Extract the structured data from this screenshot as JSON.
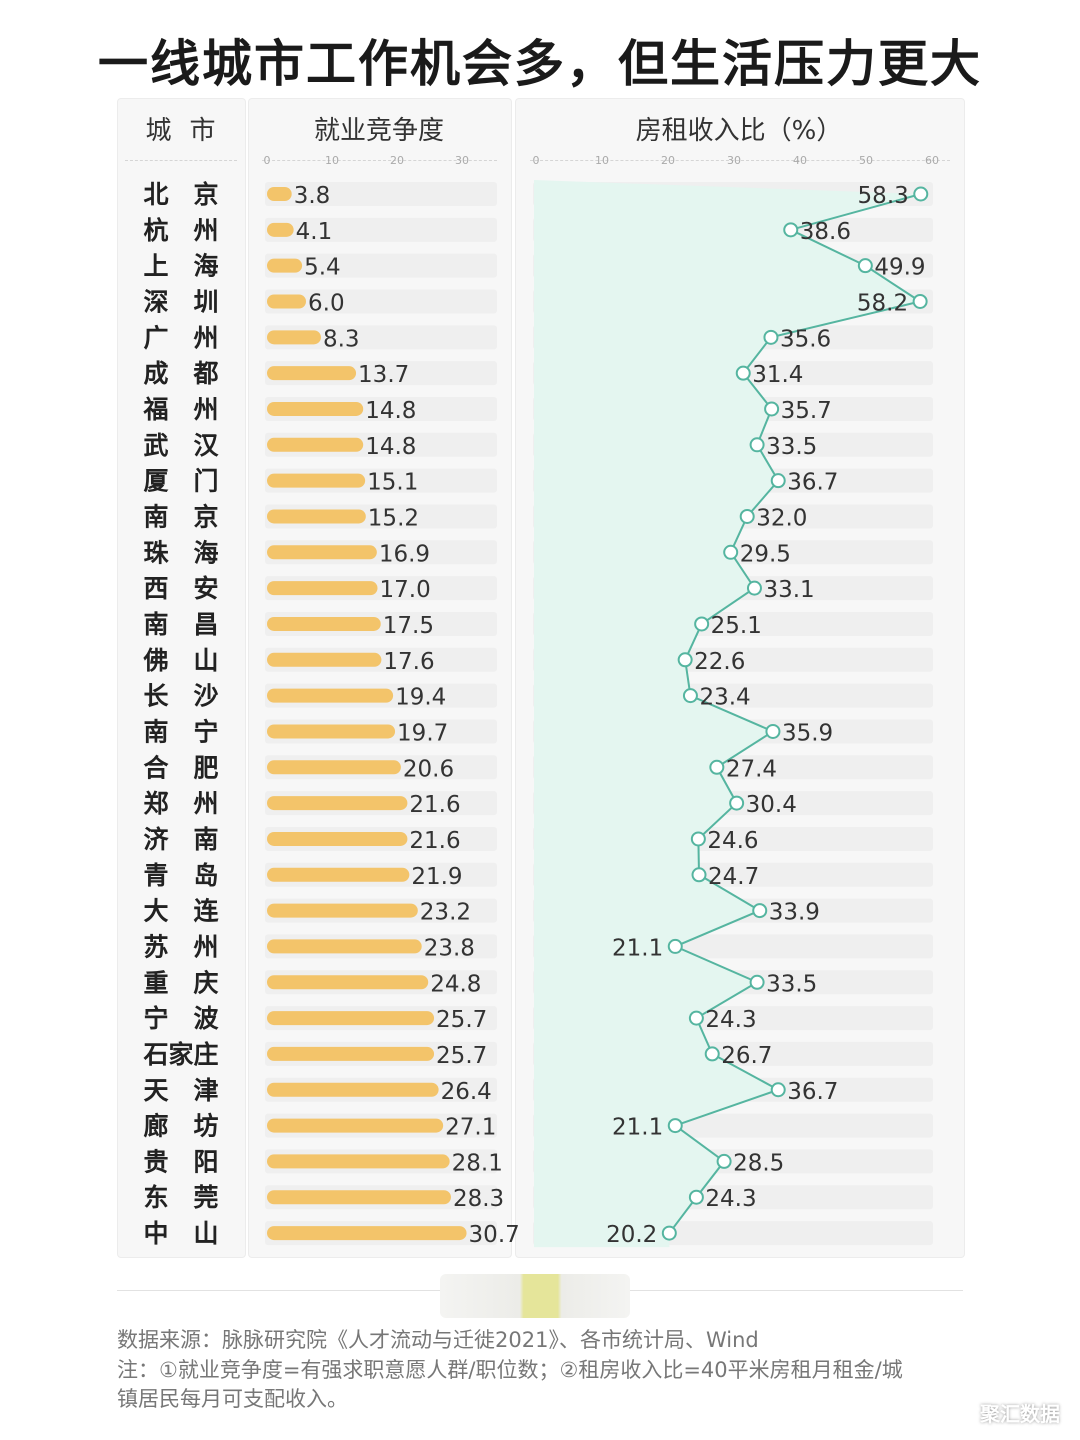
{
  "title": "一线城市工作机会多，但生活压力更大",
  "chart_data": {
    "type": "bar+line",
    "title": "一线城市工作机会多，但生活压力更大",
    "city_header": "城市",
    "categories": [
      "北京",
      "杭州",
      "上海",
      "深圳",
      "广州",
      "成都",
      "福州",
      "武汉",
      "厦门",
      "南京",
      "珠海",
      "西安",
      "南昌",
      "佛山",
      "长沙",
      "南宁",
      "合肥",
      "郑州",
      "济南",
      "青岛",
      "大连",
      "苏州",
      "重庆",
      "宁波",
      "石家庄",
      "天津",
      "廊坊",
      "贵阳",
      "东莞",
      "中山"
    ],
    "series": [
      {
        "name": "就业竞争度",
        "type": "bar",
        "ticks": [
          0,
          10,
          20,
          30
        ],
        "xlim": [
          0,
          34
        ],
        "values": [
          3.8,
          4.1,
          5.4,
          6.0,
          8.3,
          13.7,
          14.8,
          14.8,
          15.1,
          15.2,
          16.9,
          17.0,
          17.5,
          17.6,
          19.4,
          19.7,
          20.6,
          21.6,
          21.6,
          21.9,
          23.2,
          23.8,
          24.8,
          25.7,
          25.7,
          26.4,
          27.1,
          28.1,
          28.3,
          30.7
        ],
        "labels": [
          "3.8",
          "4.1",
          "5.4",
          "6.0",
          "8.3",
          "13.7",
          "14.8",
          "14.8",
          "15.1",
          "15.2",
          "16.9",
          "17.0",
          "17.5",
          "17.6",
          "19.4",
          "19.7",
          "20.6",
          "21.6",
          "21.6",
          "21.9",
          "23.2",
          "23.8",
          "24.8",
          "25.7",
          "25.7",
          "26.4",
          "27.1",
          "28.1",
          "28.3",
          "30.7"
        ]
      },
      {
        "name": "房租收入比（%）",
        "type": "line",
        "ticks": [
          0,
          10,
          20,
          30,
          40,
          50,
          60
        ],
        "xlim": [
          0,
          60
        ],
        "values": [
          58.3,
          38.6,
          49.9,
          58.2,
          35.6,
          31.4,
          35.7,
          33.5,
          36.7,
          32.0,
          29.5,
          33.1,
          25.1,
          22.6,
          23.4,
          35.9,
          27.4,
          30.4,
          24.6,
          24.7,
          33.9,
          21.1,
          33.5,
          24.3,
          26.7,
          36.7,
          21.1,
          28.5,
          24.3,
          20.2
        ],
        "labels": [
          "58.3",
          "38.6",
          "49.9",
          "58.2",
          "35.6",
          "31.4",
          "35.7",
          "33.5",
          "36.7",
          "32.0",
          "29.5",
          "33.1",
          "25.1",
          "22.6",
          "23.4",
          "35.9",
          "27.4",
          "30.4",
          "24.6",
          "24.7",
          "33.9",
          "21.1",
          "33.5",
          "24.3",
          "26.7",
          "36.7",
          "21.1",
          "28.5",
          "24.3",
          "20.2"
        ]
      }
    ],
    "colors": {
      "bar": "#f3c46a",
      "line": "#55b5a0",
      "fill": "#e3f5ef",
      "track": "#efefef"
    }
  },
  "source": "数据来源：脉脉研究院《人才流动与迁徙2021》、各市统计局、Wind",
  "note_line1": "注：①就业竞争度=有强求职意愿人群/职位数；②租房收入比=40平米房租月租金/城",
  "note_line2": "镇居民每月可支配收入。",
  "watermark": "聚汇数据"
}
